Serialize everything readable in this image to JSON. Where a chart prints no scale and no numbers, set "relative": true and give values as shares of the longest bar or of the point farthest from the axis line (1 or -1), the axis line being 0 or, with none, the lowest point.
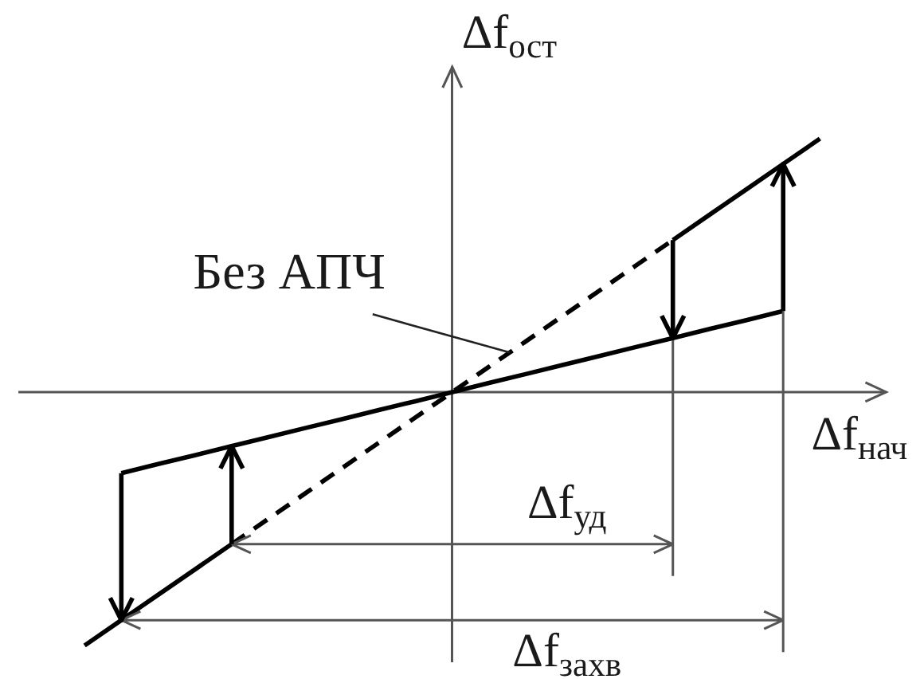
{
  "chart_data": {
    "type": "line",
    "relative": true,
    "xlabel": "Δf$_{нач}$",
    "ylabel": "Δf$_{ост}$",
    "marker": "none",
    "line_style": "solid",
    "categories": [
      null,
      null,
      null,
      null,
      null,
      null,
      null,
      null,
      null,
      null,
      null,
      null,
      null,
      null,
      null,
      null,
      null,
      null,
      null,
      null,
      null
    ],
    "series": [
      {
        "color": "#000000",
        "values": [
          -1,
          -0.9,
          -0.8,
          -0.7,
          -0.6,
          null,
          null,
          null,
          null,
          null,
          null,
          null,
          null,
          null,
          null,
          null,
          null,
          null,
          null,
          null,
          null
        ]
      },
      {
        "name": "Без АПЧ",
        "color": "#000000",
        "line_style": "dashed",
        "values": [
          null,
          null,
          null,
          null,
          -0.6,
          -0.5,
          -0.4,
          -0.3,
          -0.2,
          -0.1,
          0,
          0.1,
          0.2,
          0.3,
          0.4,
          0.5,
          0.6,
          null,
          null,
          null,
          null
        ]
      },
      {
        "color": "#000000",
        "values": [
          null,
          null,
          null,
          null,
          null,
          null,
          null,
          null,
          null,
          null,
          null,
          null,
          null,
          null,
          null,
          null,
          0.6,
          0.7,
          0.8,
          0.9,
          1
        ]
      },
      {
        "color": "#000000",
        "values": [
          null,
          -0.32,
          -0.284,
          -0.249,
          -0.213,
          -0.178,
          -0.142,
          -0.107,
          -0.071,
          -0.036,
          0,
          0.036,
          0.071,
          0.107,
          0.142,
          0.178,
          0.213,
          0.249,
          0.284,
          0.32,
          null
        ]
      }
    ],
    "annotations": [
      "Δf$_{уд}$",
      "Δf$_{захв}$"
    ]
  }
}
